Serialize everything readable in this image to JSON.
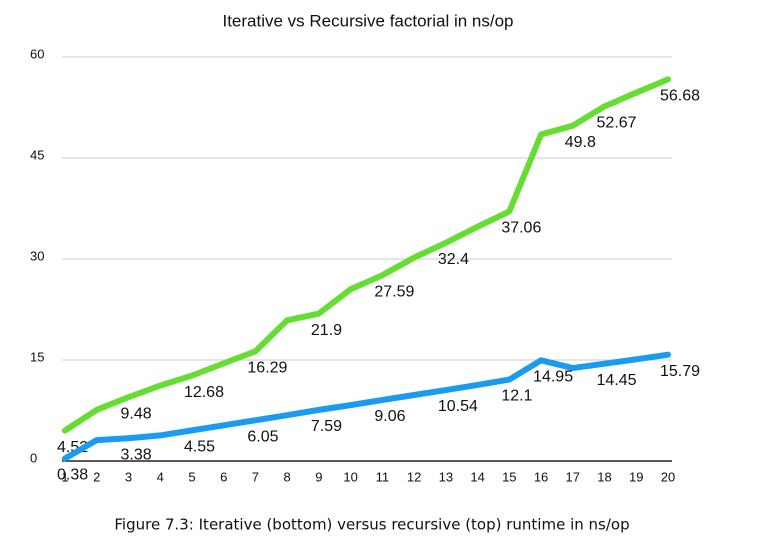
{
  "chart_data": {
    "type": "line",
    "title": "Iterative vs Recursive factorial in ns/op",
    "caption": "Figure 7.3: Iterative (bottom) versus recursive (top) runtime in ns/op",
    "x": [
      1,
      2,
      3,
      4,
      5,
      6,
      7,
      8,
      9,
      10,
      11,
      12,
      13,
      14,
      15,
      16,
      17,
      18,
      19,
      20
    ],
    "xlim": [
      1,
      20
    ],
    "xticks": [
      1,
      2,
      3,
      4,
      5,
      6,
      7,
      8,
      9,
      10,
      11,
      12,
      13,
      14,
      15,
      16,
      17,
      18,
      19,
      20
    ],
    "ylim": [
      0,
      60
    ],
    "yticks": [
      0,
      15,
      30,
      45,
      60
    ],
    "grid": true,
    "series": [
      {
        "color": "#66dd33",
        "values": [
          4.52,
          7.6,
          9.48,
          11.2,
          12.68,
          14.5,
          16.29,
          20.9,
          21.9,
          25.5,
          27.59,
          30.2,
          32.4,
          34.8,
          37.06,
          48.5,
          49.8,
          52.67,
          54.7,
          56.68
        ],
        "value_labels": [
          "4.52",
          null,
          "9.48",
          null,
          "12.68",
          null,
          "16.29",
          null,
          "21.9",
          null,
          "27.59",
          null,
          "32.4",
          null,
          "37.06",
          null,
          "49.8",
          "52.67",
          null,
          "56.68"
        ]
      },
      {
        "color": "#1a9bf0",
        "values": [
          0.38,
          3.1,
          3.38,
          3.8,
          4.55,
          5.3,
          6.05,
          6.8,
          7.59,
          8.3,
          9.06,
          9.8,
          10.54,
          11.3,
          12.1,
          14.95,
          13.8,
          14.45,
          15.1,
          15.79
        ],
        "value_labels": [
          "0.38",
          null,
          "3.38",
          null,
          "4.55",
          null,
          "6.05",
          null,
          "7.59",
          null,
          "9.06",
          null,
          "10.54",
          null,
          "12.1",
          "14.95",
          null,
          "14.45",
          null,
          "15.79"
        ]
      }
    ]
  }
}
